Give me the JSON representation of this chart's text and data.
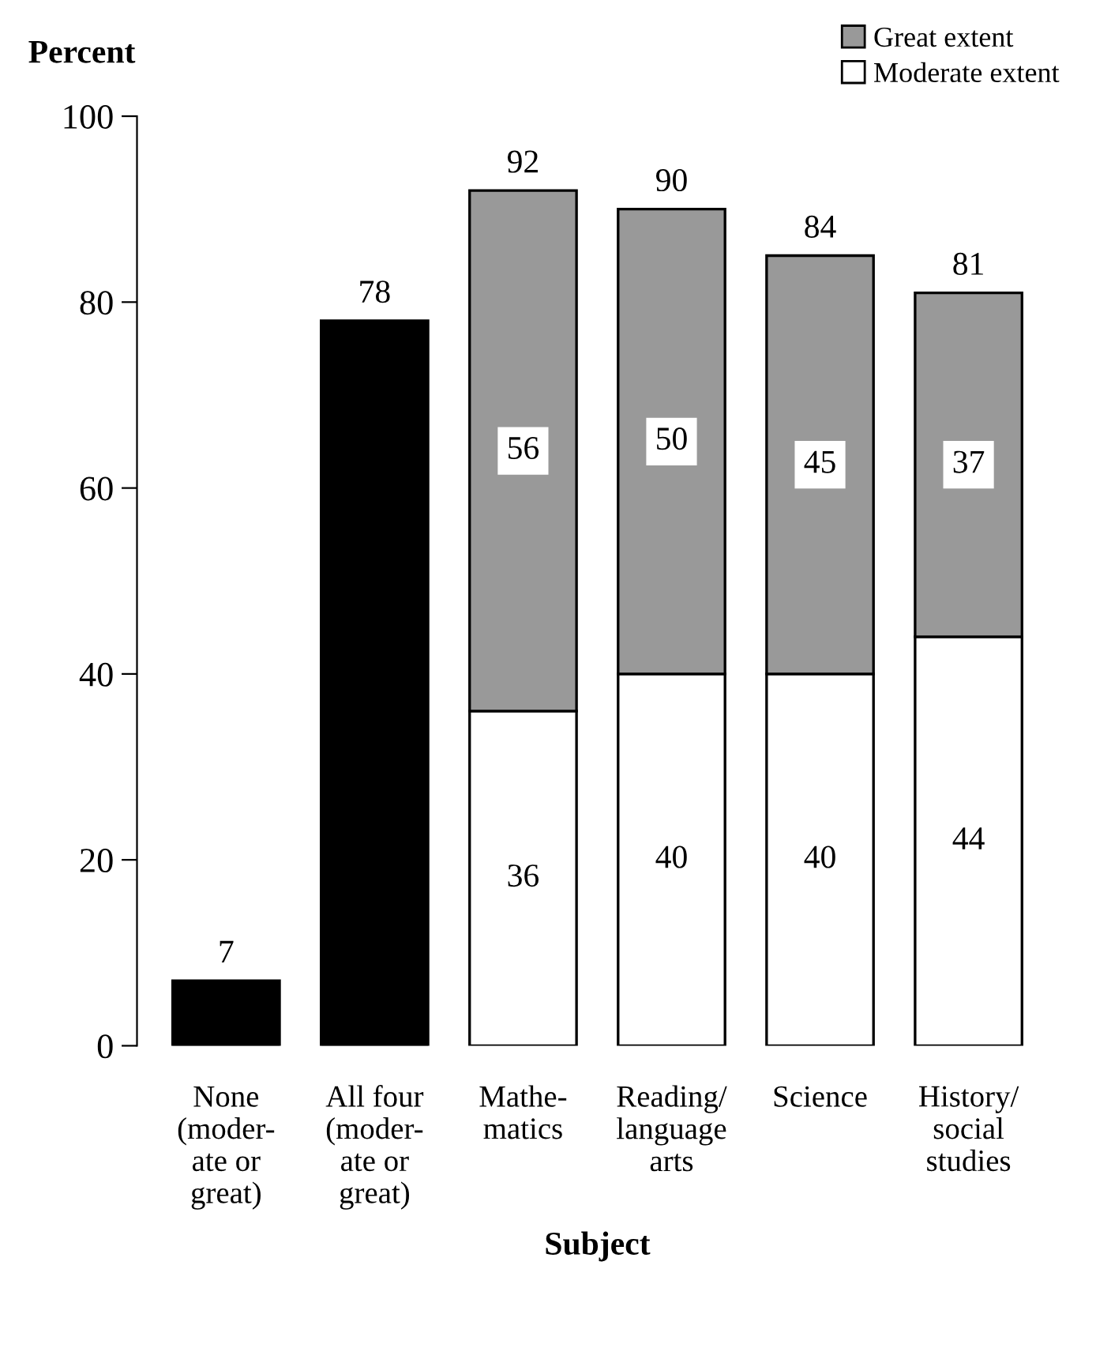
{
  "chart_data": {
    "type": "bar",
    "stacked": true,
    "xlabel": "Subject",
    "ylabel": "Percent",
    "categories": [
      "None\n(moder-\nate or\ngreat)",
      "All four\n(moder-\nate or\ngreat)",
      "Mathe-\nmatics",
      "Reading/\nlanguage\narts",
      "Science",
      "History/\nsocial\nstudies"
    ],
    "series": [
      {
        "color": "#000000",
        "values": [
          7,
          78,
          null,
          null,
          null,
          null
        ],
        "value_labels": [
          null,
          null,
          null,
          null,
          null,
          null
        ]
      },
      {
        "name": "Moderate extent",
        "color": "#ffffff",
        "values": [
          null,
          null,
          36,
          40,
          40,
          44
        ],
        "value_labels": [
          null,
          null,
          "36",
          "40",
          "40",
          "44"
        ]
      },
      {
        "name": "Great extent",
        "color": "#999999",
        "values": [
          null,
          null,
          56,
          50,
          45,
          37
        ],
        "value_labels": [
          null,
          null,
          "56",
          "50",
          "45",
          "37"
        ]
      }
    ],
    "totals": [
      "7",
      "78",
      "92",
      "90",
      "84",
      "81"
    ],
    "ylim": [
      0,
      100
    ],
    "yticks": [
      0,
      20,
      40,
      60,
      80,
      100
    ],
    "grid": false,
    "legend": "top right"
  }
}
